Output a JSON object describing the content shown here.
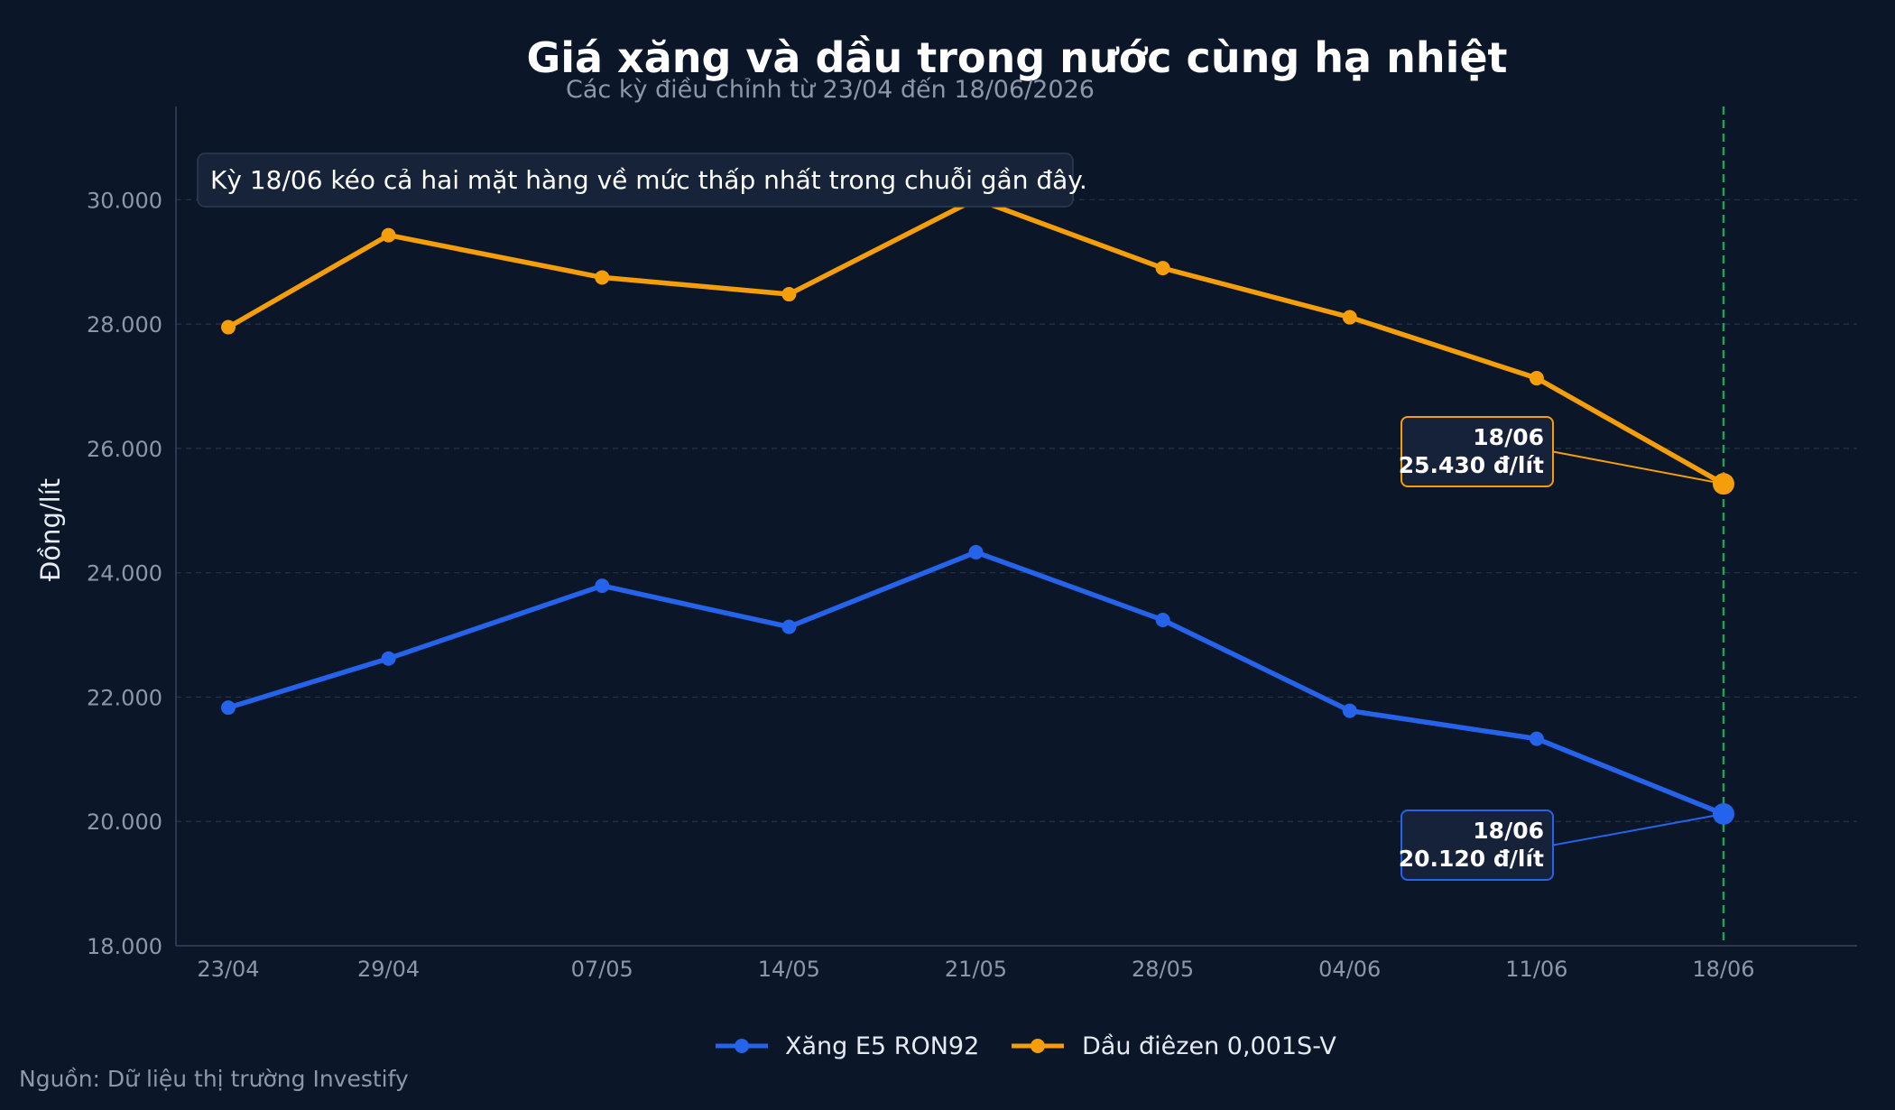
{
  "chart_data": {
    "type": "line",
    "title": "Giá xăng và dầu trong nước cùng hạ nhiệt",
    "subtitle": "Các kỳ điều chỉnh từ 23/04 đến 18/06/2026",
    "ylabel": "Đồng/lít",
    "xlabel": "",
    "categories": [
      "23/04",
      "29/04",
      "07/05",
      "14/05",
      "21/05",
      "28/05",
      "04/06",
      "11/06",
      "18/06"
    ],
    "x_days": [
      0,
      6,
      14,
      21,
      28,
      35,
      42,
      49,
      56
    ],
    "ylim": [
      18000,
      31500
    ],
    "yticks": [
      18000,
      20000,
      22000,
      24000,
      26000,
      28000,
      30000
    ],
    "ytick_labels": [
      "18.000",
      "20.000",
      "22.000",
      "24.000",
      "26.000",
      "28.000",
      "30.000"
    ],
    "grid": true,
    "legend_position": "bottom-center",
    "series": [
      {
        "name": "Xăng E5 RON92",
        "color": "#2563eb",
        "values": [
          21830,
          22620,
          23790,
          23130,
          24330,
          23240,
          21780,
          21330,
          20120
        ]
      },
      {
        "name": "Dầu điêzen 0,001S-V",
        "color": "#f59e0b",
        "values": [
          27950,
          29430,
          28750,
          28480,
          30010,
          28900,
          28110,
          27130,
          25430
        ]
      }
    ],
    "annotation": "Kỳ 18/06 kéo cả hai mặt hàng về mức thấp nhất trong chuỗi gần đây.",
    "highlight_line_color": "#22a150",
    "callouts": [
      {
        "series": 1,
        "date": "18/06",
        "value_label": "25.430 đ/lít",
        "color": "#f59e0b"
      },
      {
        "series": 0,
        "date": "18/06",
        "value_label": "20.120 đ/lít",
        "color": "#2563eb"
      }
    ],
    "source": "Nguồn: Dữ liệu thị trường Investify"
  }
}
